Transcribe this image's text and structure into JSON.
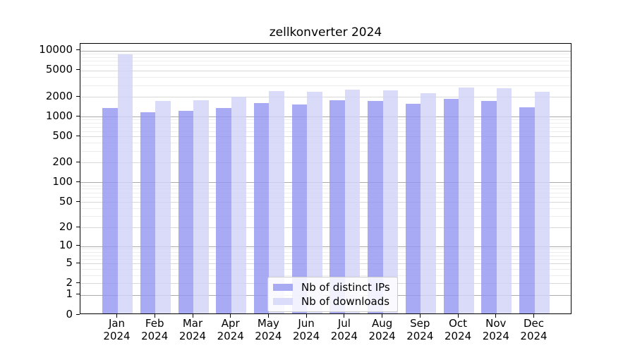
{
  "title": "zellkonverter 2024",
  "chart_data": {
    "type": "bar",
    "title": "zellkonverter 2024",
    "categories": [
      "Jan",
      "Feb",
      "Mar",
      "Apr",
      "May",
      "Jun",
      "Jul",
      "Aug",
      "Sep",
      "Oct",
      "Nov",
      "Dec"
    ],
    "x_year_label": "2024",
    "series": [
      {
        "name": "Nb of distinct IPs",
        "color": "rgba(146,149,240,0.8)",
        "swatch_color": "#a8aaf2",
        "values": [
          1280,
          1105,
          1170,
          1275,
          1510,
          1460,
          1685,
          1655,
          1480,
          1770,
          1640,
          1315
        ]
      },
      {
        "name": "Nb of downloads",
        "color": "rgba(210,211,248,0.82)",
        "swatch_color": "#dbdcf9",
        "values": [
          8370,
          1630,
          1695,
          1890,
          2320,
          2280,
          2455,
          2395,
          2155,
          2605,
          2560,
          2280
        ]
      }
    ],
    "y_scale": "log10(1+x)",
    "y_ticks": [
      10000,
      5000,
      2000,
      1000,
      500,
      200,
      100,
      50,
      20,
      10,
      5,
      2,
      1,
      0
    ],
    "ylim": [
      0,
      12500
    ],
    "grid": true,
    "legend_position": "lower center",
    "xlabel": "",
    "ylabel": ""
  }
}
